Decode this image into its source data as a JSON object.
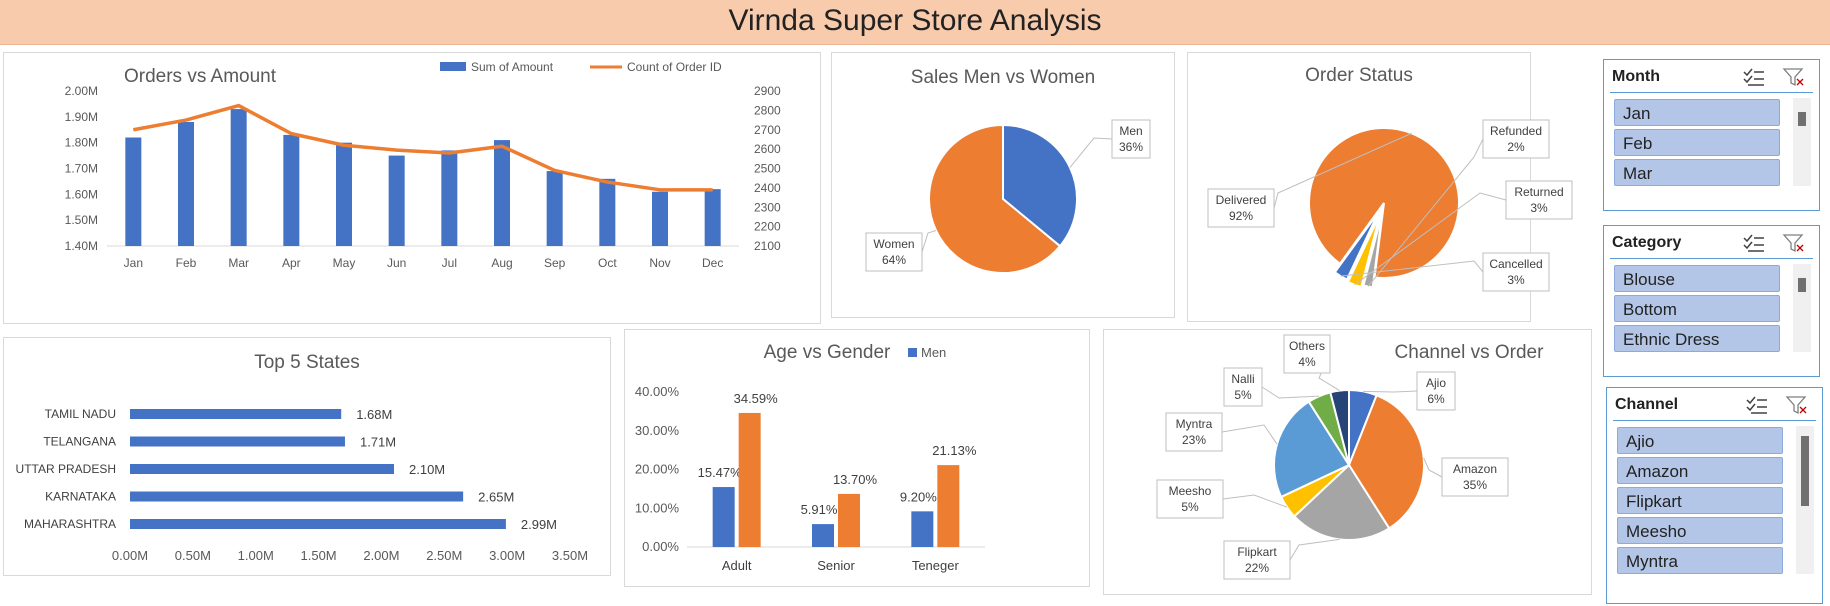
{
  "header": {
    "title": "Virnda Super Store Analysis"
  },
  "colors": {
    "blue": "#4472c4",
    "orange": "#ed7d31",
    "gray": "#a5a5a5",
    "yellow": "#ffc000",
    "lightblue": "#5b9bd5",
    "green": "#70ad47",
    "navy": "#264478",
    "banner": "#f8cbad"
  },
  "chart_data": [
    {
      "id": "orders_vs_amount",
      "type": "bar",
      "title": "Orders vs Amount",
      "categories": [
        "Jan",
        "Feb",
        "Mar",
        "Apr",
        "May",
        "Jun",
        "Jul",
        "Aug",
        "Sep",
        "Oct",
        "Nov",
        "Dec"
      ],
      "series": [
        {
          "name": "Sum of Amount",
          "type": "bar",
          "axis": "left",
          "color": "#4472c4",
          "values": [
            1.82,
            1.88,
            1.93,
            1.83,
            1.8,
            1.75,
            1.77,
            1.81,
            1.69,
            1.66,
            1.61,
            1.62
          ]
        },
        {
          "name": "Count of Order ID",
          "type": "line",
          "axis": "right",
          "color": "#ed7d31",
          "values": [
            2700,
            2750,
            2825,
            2680,
            2620,
            2595,
            2580,
            2615,
            2490,
            2430,
            2390,
            2390
          ]
        }
      ],
      "ylim": [
        1.4,
        2.0
      ],
      "y_ticks": [
        "1.40M",
        "1.50M",
        "1.60M",
        "1.70M",
        "1.80M",
        "1.90M",
        "2.00M"
      ],
      "y2lim": [
        2100,
        2900
      ],
      "y2_ticks": [
        "2100",
        "2200",
        "2300",
        "2400",
        "2500",
        "2600",
        "2700",
        "2800",
        "2900"
      ],
      "legend": "top-right",
      "grid": false
    },
    {
      "id": "sales_gender",
      "type": "pie",
      "title": "Sales Men vs Women",
      "slices": [
        {
          "label": "Men",
          "pct": "36%",
          "value": 36,
          "color": "#4472c4"
        },
        {
          "label": "Women",
          "pct": "64%",
          "value": 64,
          "color": "#ed7d31"
        }
      ]
    },
    {
      "id": "order_status",
      "type": "pie",
      "title": "Order Status",
      "slices": [
        {
          "label": "Delivered",
          "pct": "92%",
          "value": 92,
          "color": "#ed7d31"
        },
        {
          "label": "Refunded",
          "pct": "2%",
          "value": 2,
          "color": "#a5a5a5"
        },
        {
          "label": "Returned",
          "pct": "3%",
          "value": 3,
          "color": "#ffc000"
        },
        {
          "label": "Cancelled",
          "pct": "3%",
          "value": 3,
          "color": "#4472c4"
        }
      ]
    },
    {
      "id": "top_states",
      "type": "bar",
      "orientation": "horizontal",
      "title": "Top 5 States",
      "categories": [
        "TAMIL NADU",
        "TELANGANA",
        "UTTAR PRADESH",
        "KARNATAKA",
        "MAHARASHTRA"
      ],
      "values": [
        1.68,
        1.71,
        2.1,
        2.65,
        2.99
      ],
      "data_labels": [
        "1.68M",
        "1.71M",
        "2.10M",
        "2.65M",
        "2.99M"
      ],
      "xlim": [
        0,
        3.5
      ],
      "x_ticks": [
        "0.00M",
        "0.50M",
        "1.00M",
        "1.50M",
        "2.00M",
        "2.50M",
        "3.00M",
        "3.50M"
      ],
      "color": "#4472c4"
    },
    {
      "id": "age_gender",
      "type": "bar",
      "title": "Age vs Gender",
      "categories": [
        "Adult",
        "Senior",
        "Teneger"
      ],
      "series": [
        {
          "name": "Men",
          "color": "#4472c4",
          "values": [
            15.47,
            5.91,
            9.2
          ],
          "labels": [
            "15.47%",
            "5.91%",
            "9.20%"
          ]
        },
        {
          "name": "",
          "color": "#ed7d31",
          "values": [
            34.59,
            13.7,
            21.13
          ],
          "labels": [
            "34.59%",
            "13.70%",
            "21.13%"
          ]
        }
      ],
      "ylim": [
        0,
        40
      ],
      "y_ticks": [
        "0.00%",
        "10.00%",
        "20.00%",
        "30.00%",
        "40.00%"
      ],
      "legend": "top-right"
    },
    {
      "id": "channel_order",
      "type": "pie",
      "title": "Channel vs Order",
      "slices": [
        {
          "label": "Ajio",
          "pct": "6%",
          "value": 6,
          "color": "#4472c4"
        },
        {
          "label": "Amazon",
          "pct": "35%",
          "value": 35,
          "color": "#ed7d31"
        },
        {
          "label": "Flipkart",
          "pct": "22%",
          "value": 22,
          "color": "#a5a5a5"
        },
        {
          "label": "Meesho",
          "pct": "5%",
          "value": 5,
          "color": "#ffc000"
        },
        {
          "label": "Myntra",
          "pct": "23%",
          "value": 23,
          "color": "#5b9bd5"
        },
        {
          "label": "Nalli",
          "pct": "5%",
          "value": 5,
          "color": "#70ad47"
        },
        {
          "label": "Others",
          "pct": "4%",
          "value": 4,
          "color": "#264478"
        }
      ]
    }
  ],
  "slicers": [
    {
      "id": "month",
      "title": "Month",
      "items": [
        "Jan",
        "Feb",
        "Mar"
      ]
    },
    {
      "id": "category",
      "title": "Category",
      "items": [
        "Blouse",
        "Bottom",
        "Ethnic Dress"
      ]
    },
    {
      "id": "channel",
      "title": "Channel",
      "items": [
        "Ajio",
        "Amazon",
        "Flipkart",
        "Meesho",
        "Myntra"
      ]
    }
  ]
}
